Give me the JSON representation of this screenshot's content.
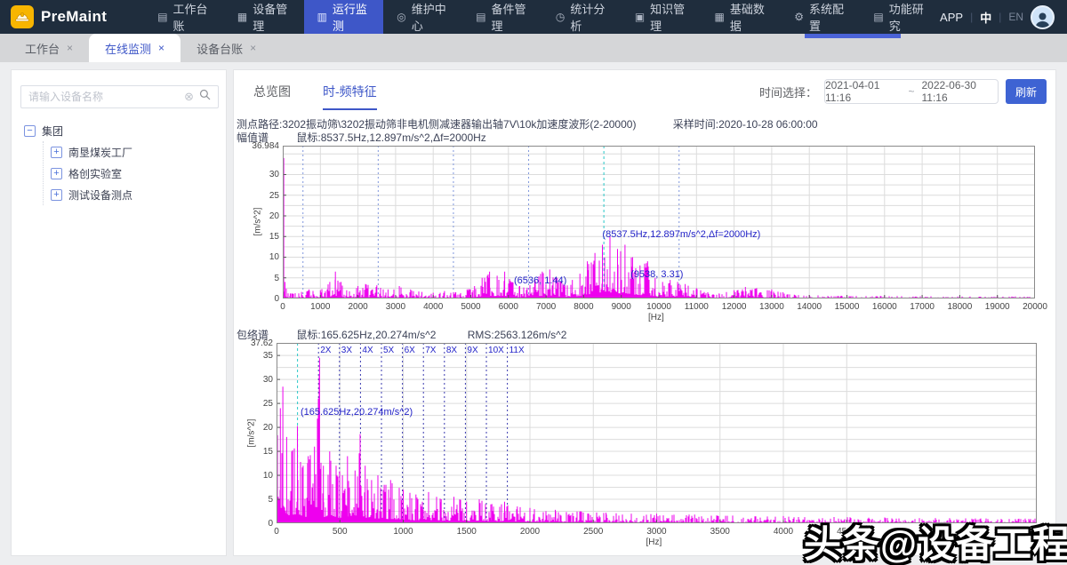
{
  "navbar": {
    "brand": "PreMaint",
    "items": [
      {
        "label": "工作台账",
        "icon": "ledger-icon",
        "glyph": "▤"
      },
      {
        "label": "设备管理",
        "icon": "equipment-icon",
        "glyph": "▦"
      },
      {
        "label": "运行监测",
        "icon": "monitoring-icon",
        "glyph": "▥"
      },
      {
        "label": "维护中心",
        "icon": "maintenance-icon",
        "glyph": "◎"
      },
      {
        "label": "备件管理",
        "icon": "spare-parts-icon",
        "glyph": "▤"
      },
      {
        "label": "统计分析",
        "icon": "statistics-icon",
        "glyph": "◷"
      },
      {
        "label": "知识管理",
        "icon": "knowledge-icon",
        "glyph": "▣"
      },
      {
        "label": "基础数据",
        "icon": "base-data-icon",
        "glyph": "▦"
      },
      {
        "label": "系统配置",
        "icon": "system-config-icon",
        "glyph": "⚙"
      },
      {
        "label": "功能研究",
        "icon": "research-icon",
        "glyph": "▤"
      }
    ],
    "active_index": 2,
    "right": {
      "app_label": "APP",
      "lang_zh": "中",
      "lang_en": "EN"
    }
  },
  "tabs": {
    "items": [
      {
        "label": "工作台"
      },
      {
        "label": "在线监测"
      },
      {
        "label": "设备台账"
      }
    ],
    "close_glyph": "×",
    "active_index": 1
  },
  "sidebar": {
    "search_placeholder": "请输入设备名称",
    "tree": {
      "root": "集团",
      "children": [
        "南垦煤炭工厂",
        "格创实验室",
        "测试设备测点"
      ]
    }
  },
  "toolbar": {
    "tab_overview": "总览图",
    "tab_timefreq": "时-频特征",
    "time_label": "时间选择：",
    "time_start": "2021-04-01 11:16",
    "time_sep": "~",
    "time_end": "2022-06-30 11:16",
    "refresh": "刷新"
  },
  "watermark": "头条@设备工程",
  "colors": {
    "accent": "#3e57c8",
    "spectrum": "#ee00ee",
    "annotation": "#2323c8",
    "cursor": "#29c8c8"
  },
  "chart_data": [
    {
      "type": "line",
      "title_path": "测点路径:3202振动筛\\3202振动筛非电机侧减速器输出轴7V\\10k加速度波形(2-20000)",
      "sample_time": "采样时间:2020-10-28 06:00:00",
      "spectrum_label": "幅值谱",
      "cursor_readout": "鼠标:8537.5Hz,12.897m/s^2,Δf=2000Hz",
      "ylabel": "[m/s^2]",
      "xlabel": "[Hz]",
      "ymax": 36.984,
      "ymax_label": "36.984",
      "yticks": [
        0,
        5,
        10,
        15,
        20,
        25,
        30
      ],
      "xmax": 20000,
      "xticks": [
        0,
        1000,
        2000,
        3000,
        4000,
        5000,
        6000,
        7000,
        8000,
        9000,
        10000,
        11000,
        12000,
        13000,
        14000,
        15000,
        16000,
        17000,
        18000,
        19000,
        20000
      ],
      "cursor_hz": 8537.5,
      "sideband_hz": [
        537.5,
        2537.5,
        4537.5,
        6537.5,
        10537.5
      ],
      "annotations": [
        {
          "text": "(8537.5Hz,12.897m/s^2,Δf=2000Hz)",
          "hz": 8450,
          "val": 14.2
        },
        {
          "text": "(6536, 1.44)",
          "hz": 6100,
          "val": 3.0
        },
        {
          "text": "(9538, 3.31)",
          "hz": 9200,
          "val": 4.6
        }
      ],
      "envelope": [
        [
          0,
          34
        ],
        [
          25,
          34
        ],
        [
          60,
          4
        ],
        [
          200,
          1.2
        ],
        [
          500,
          1.6
        ],
        [
          700,
          2.2
        ],
        [
          1000,
          2.0
        ],
        [
          1250,
          4.0
        ],
        [
          1400,
          6.5
        ],
        [
          1550,
          4.0
        ],
        [
          1700,
          2.0
        ],
        [
          2000,
          3.0
        ],
        [
          2200,
          3.5
        ],
        [
          2500,
          3.2
        ],
        [
          2800,
          2.2
        ],
        [
          3100,
          3.0
        ],
        [
          3400,
          2.2
        ],
        [
          3700,
          1.6
        ],
        [
          4000,
          1.4
        ],
        [
          4300,
          1.8
        ],
        [
          4600,
          1.5
        ],
        [
          4900,
          2.2
        ],
        [
          5100,
          3.0
        ],
        [
          5300,
          5.0
        ],
        [
          5500,
          6.5
        ],
        [
          5700,
          5.5
        ],
        [
          5900,
          6.5
        ],
        [
          6100,
          4.0
        ],
        [
          6300,
          3.0
        ],
        [
          6500,
          2.6
        ],
        [
          6700,
          4.5
        ],
        [
          6900,
          6.5
        ],
        [
          7100,
          7.0
        ],
        [
          7300,
          5.0
        ],
        [
          7500,
          3.2
        ],
        [
          7700,
          4.5
        ],
        [
          7900,
          6.0
        ],
        [
          8100,
          9.0
        ],
        [
          8300,
          11.0
        ],
        [
          8500,
          13.0
        ],
        [
          8700,
          15.0
        ],
        [
          8900,
          12.0
        ],
        [
          9100,
          13.0
        ],
        [
          9300,
          10.0
        ],
        [
          9500,
          8.0
        ],
        [
          9700,
          9.0
        ],
        [
          9900,
          5.0
        ],
        [
          10100,
          4.0
        ],
        [
          10300,
          4.5
        ],
        [
          10500,
          4.0
        ],
        [
          10700,
          3.5
        ],
        [
          11000,
          2.5
        ],
        [
          11300,
          1.5
        ],
        [
          11600,
          1.2
        ],
        [
          12000,
          2.0
        ],
        [
          12300,
          2.8
        ],
        [
          12600,
          2.5
        ],
        [
          13000,
          2.2
        ],
        [
          13300,
          1.5
        ],
        [
          13600,
          0.9
        ],
        [
          14000,
          0.8
        ],
        [
          15000,
          0.7
        ],
        [
          16000,
          0.6
        ],
        [
          17000,
          0.55
        ],
        [
          18000,
          0.5
        ],
        [
          19000,
          0.5
        ],
        [
          20000,
          0.55
        ]
      ],
      "seed": 42
    },
    {
      "type": "line",
      "spectrum_label": "包络谱",
      "cursor_readout": "鼠标:165.625Hz,20.274m/s^2",
      "rms_readout": "RMS:2563.126m/s^2",
      "ylabel": "[m/s^2]",
      "xlabel": "[Hz]",
      "ymax": 37.62,
      "ymax_label": "37.62",
      "yticks": [
        0,
        5,
        10,
        15,
        20,
        25,
        30,
        35
      ],
      "xmax": 6000,
      "xticks": [
        0,
        500,
        1000,
        1500,
        2000,
        2500,
        3000,
        3500,
        4000,
        4500
      ],
      "cursor_hz": 165.625,
      "harmonics": {
        "base_hz": 165.625,
        "from": 2,
        "to": 11,
        "suffix": "X"
      },
      "annotations": [
        {
          "text": "(165.625Hz,20.274m/s^2)",
          "hz": 175,
          "val": 22.0
        }
      ],
      "envelope": [
        [
          0,
          18
        ],
        [
          30,
          24
        ],
        [
          50,
          28.5
        ],
        [
          80,
          18
        ],
        [
          120,
          15
        ],
        [
          165,
          20.3
        ],
        [
          210,
          12
        ],
        [
          250,
          14
        ],
        [
          300,
          16
        ],
        [
          340,
          34.5
        ],
        [
          370,
          12
        ],
        [
          420,
          15
        ],
        [
          470,
          12
        ],
        [
          520,
          10
        ],
        [
          560,
          14
        ],
        [
          620,
          11
        ],
        [
          660,
          18.6
        ],
        [
          700,
          12
        ],
        [
          750,
          9
        ],
        [
          800,
          10
        ],
        [
          850,
          8
        ],
        [
          900,
          9
        ],
        [
          1000,
          7
        ],
        [
          1100,
          6
        ],
        [
          1200,
          6.5
        ],
        [
          1300,
          5
        ],
        [
          1400,
          5.5
        ],
        [
          1500,
          4.5
        ],
        [
          1600,
          5
        ],
        [
          1700,
          4
        ],
        [
          1800,
          4.5
        ],
        [
          1900,
          3.5
        ],
        [
          2000,
          3.2
        ],
        [
          2200,
          2.8
        ],
        [
          2400,
          2.5
        ],
        [
          2600,
          2.2
        ],
        [
          2800,
          2.0
        ],
        [
          3000,
          2.0
        ],
        [
          3300,
          1.8
        ],
        [
          3600,
          1.6
        ],
        [
          4000,
          1.5
        ],
        [
          4400,
          1.3
        ],
        [
          4800,
          1.2
        ],
        [
          5200,
          1.1
        ],
        [
          5600,
          1.0
        ],
        [
          6000,
          1.0
        ]
      ],
      "seed": 7
    }
  ]
}
